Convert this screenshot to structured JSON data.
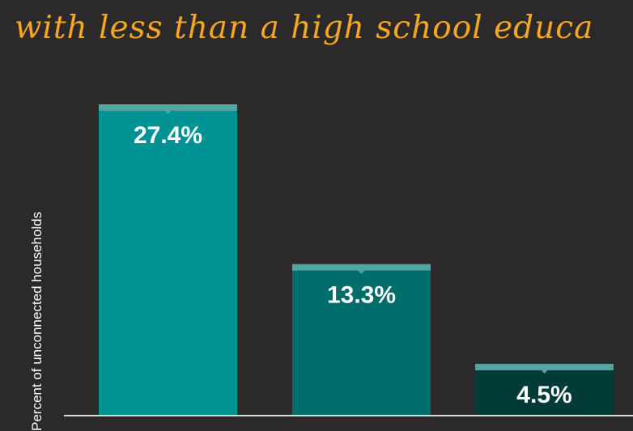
{
  "title": "with less than a high school educa",
  "colors": {
    "background": "#2b292a",
    "title": "#f5a623",
    "cap": "#52a6a2",
    "axis": "#d9d9d9",
    "bars": [
      "#009393",
      "#006d6b",
      "#013b38"
    ]
  },
  "chart_data": {
    "type": "bar",
    "title": "with less than a high school educa",
    "xlabel": "",
    "ylabel": "Percent of unconnected households",
    "categories": [
      "",
      "",
      ""
    ],
    "values": [
      27.4,
      13.3,
      4.5
    ],
    "data_labels": [
      "27.4%",
      "13.3%",
      "4.5%"
    ],
    "ylim": [
      0,
      27.4
    ],
    "grid": false,
    "legend": "none"
  }
}
